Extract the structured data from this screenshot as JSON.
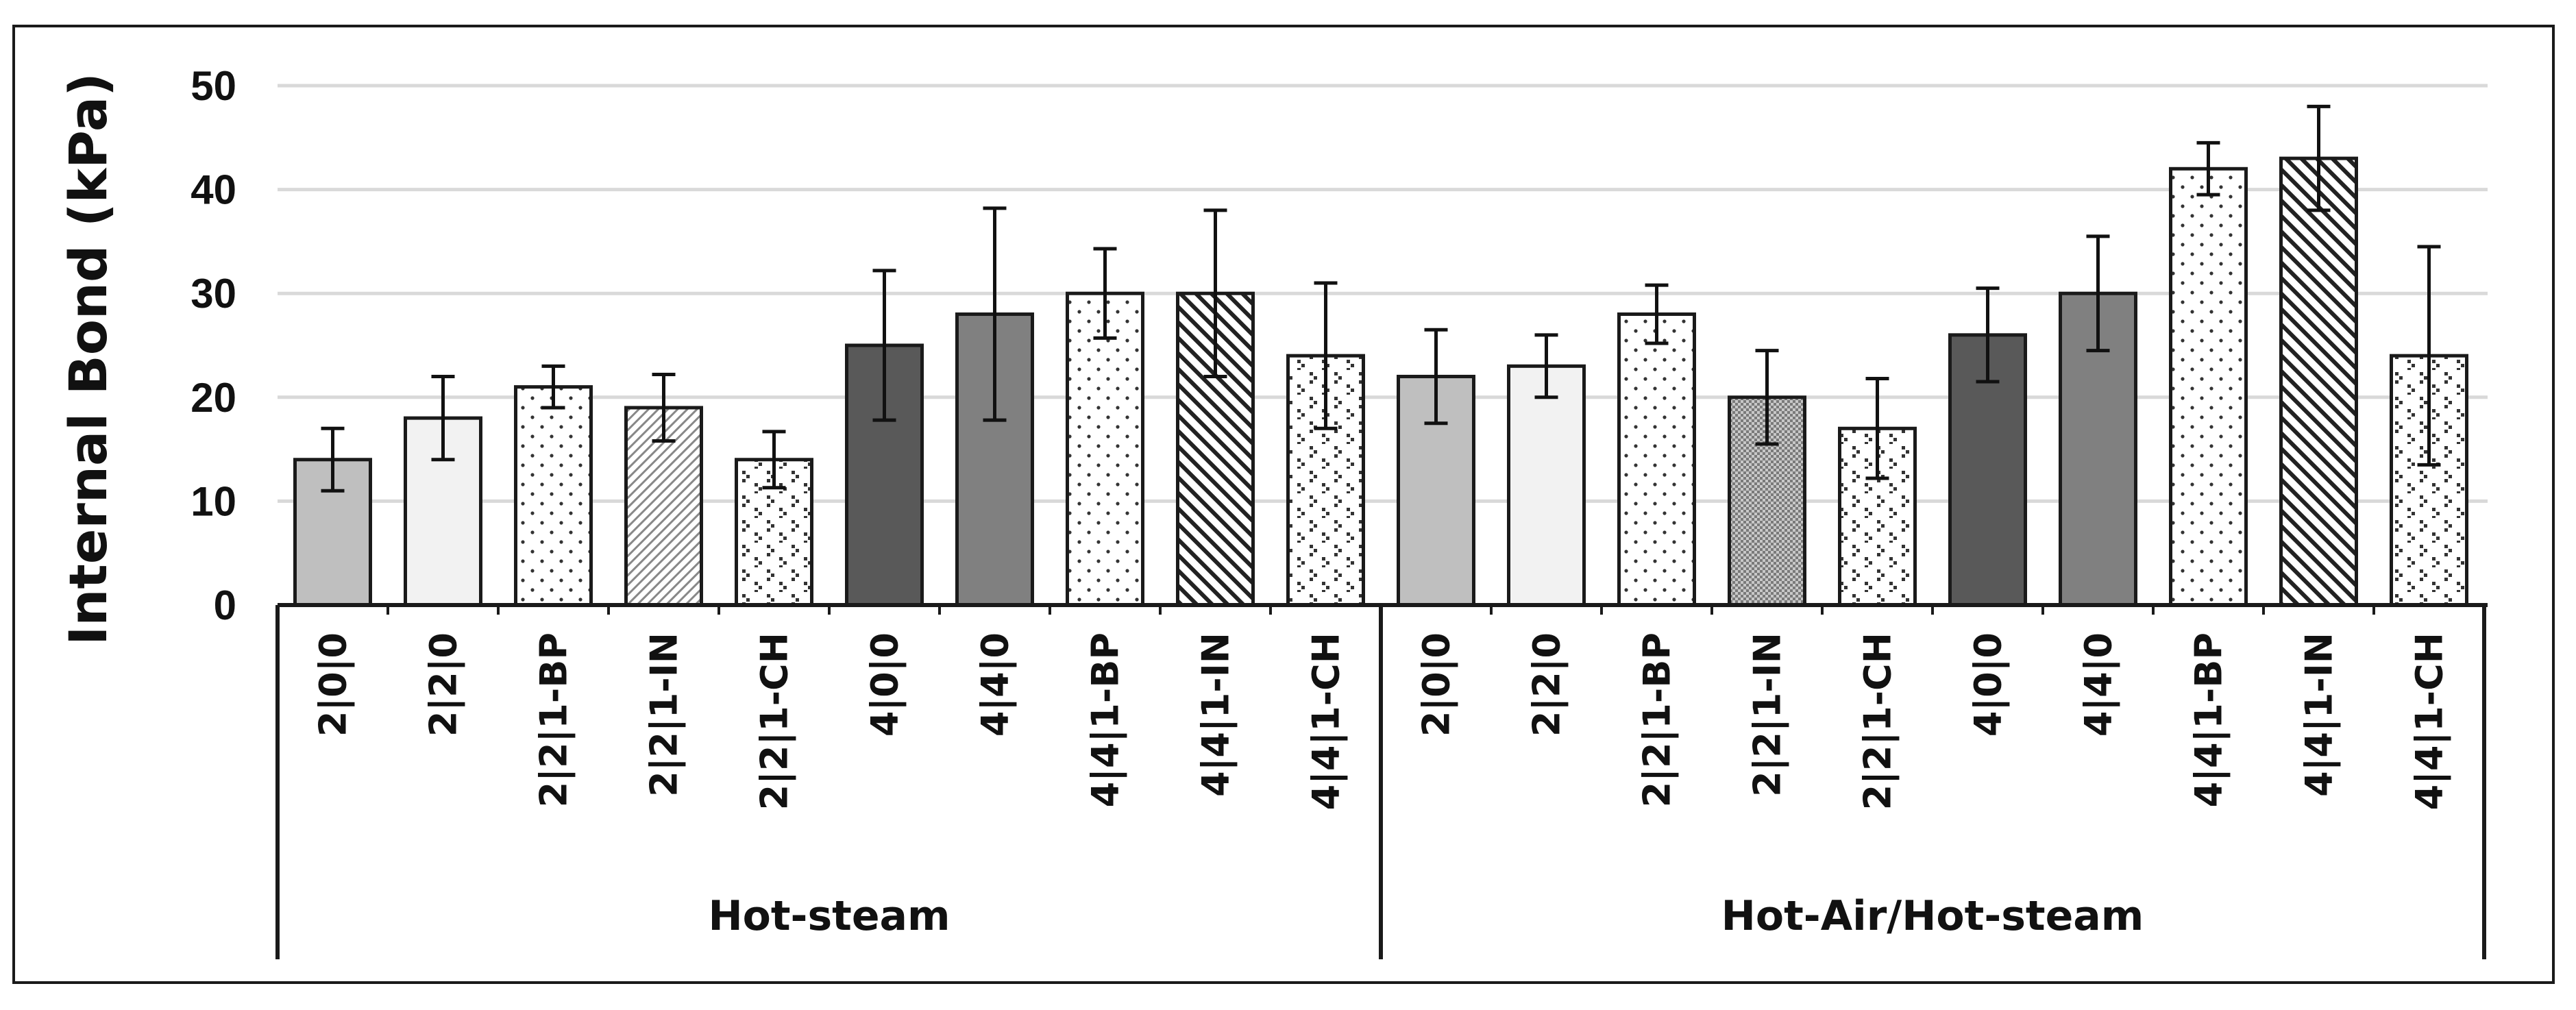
{
  "chart_data": {
    "type": "bar",
    "ylabel": "Internal Bond (kPa)",
    "ylim": [
      0,
      50
    ],
    "yticks": [
      0,
      10,
      20,
      30,
      40,
      50
    ],
    "grid": true,
    "groups": [
      {
        "name": "Hot-steam",
        "bars": [
          {
            "label": "2|0|0",
            "value": 14,
            "err_low": 11,
            "err_high": 17,
            "fill": "solid-light-gray"
          },
          {
            "label": "2|2|0",
            "value": 18,
            "err_low": 14,
            "err_high": 22,
            "fill": "solid-white-gray"
          },
          {
            "label": "2|2|1-BP",
            "value": 21,
            "err_low": 19,
            "err_high": 23,
            "fill": "sparse-dots"
          },
          {
            "label": "2|2|1-IN",
            "value": 19,
            "err_low": 15.8,
            "err_high": 22.2,
            "fill": "fine-diagonal"
          },
          {
            "label": "2|2|1-CH",
            "value": 14,
            "err_low": 11.3,
            "err_high": 16.7,
            "fill": "checker-dots"
          },
          {
            "label": "4|0|0",
            "value": 25,
            "err_low": 17.8,
            "err_high": 32.2,
            "fill": "solid-dark-gray"
          },
          {
            "label": "4|4|0",
            "value": 28,
            "err_low": 17.8,
            "err_high": 38.2,
            "fill": "solid-mid-gray"
          },
          {
            "label": "4|4|1-BP",
            "value": 30,
            "err_low": 25.7,
            "err_high": 34.3,
            "fill": "sparse-dots"
          },
          {
            "label": "4|4|1-IN",
            "value": 30,
            "err_low": 22,
            "err_high": 38,
            "fill": "bold-diagonal"
          },
          {
            "label": "4|4|1-CH",
            "value": 24,
            "err_low": 17,
            "err_high": 31,
            "fill": "checker-dots"
          }
        ]
      },
      {
        "name": "Hot-Air/Hot-steam",
        "bars": [
          {
            "label": "2|0|0",
            "value": 22,
            "err_low": 17.5,
            "err_high": 26.5,
            "fill": "solid-light-gray"
          },
          {
            "label": "2|2|0",
            "value": 23,
            "err_low": 20,
            "err_high": 26,
            "fill": "solid-white-gray"
          },
          {
            "label": "2|2|1-BP",
            "value": 28,
            "err_low": 25.2,
            "err_high": 30.8,
            "fill": "sparse-dots"
          },
          {
            "label": "2|2|1-IN",
            "value": 20,
            "err_low": 15.5,
            "err_high": 24.5,
            "fill": "crosshatch"
          },
          {
            "label": "2|2|1-CH",
            "value": 17,
            "err_low": 12.2,
            "err_high": 21.8,
            "fill": "checker-dots"
          },
          {
            "label": "4|0|0",
            "value": 26,
            "err_low": 21.5,
            "err_high": 30.5,
            "fill": "solid-dark-gray"
          },
          {
            "label": "4|4|0",
            "value": 30,
            "err_low": 24.5,
            "err_high": 35.5,
            "fill": "solid-mid-gray"
          },
          {
            "label": "4|4|1-BP",
            "value": 42,
            "err_low": 39.5,
            "err_high": 44.5,
            "fill": "sparse-dots"
          },
          {
            "label": "4|4|1-IN",
            "value": 43,
            "err_low": 38,
            "err_high": 48,
            "fill": "bold-diagonal"
          },
          {
            "label": "4|4|1-CH",
            "value": 24,
            "err_low": 13.5,
            "err_high": 34.5,
            "fill": "checker-dots"
          }
        ]
      }
    ]
  },
  "colors": {
    "axis": "#1a1a1a",
    "grid": "#d9d9d9",
    "solid-light-gray": "#bfbfbf",
    "solid-white-gray": "#f2f2f2",
    "solid-dark-gray": "#595959",
    "solid-mid-gray": "#808080"
  }
}
